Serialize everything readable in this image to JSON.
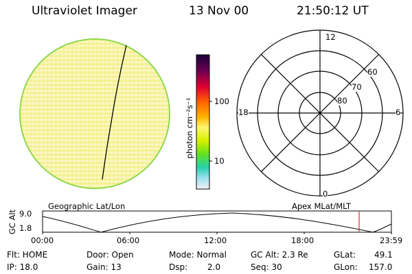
{
  "header": {
    "instrument": "Ultraviolet Imager",
    "date": "13 Nov 00",
    "time": "21:50:12 UT"
  },
  "colorbar": {
    "unit_label": "photon cm⁻²s⁻¹",
    "ticks": [
      "100",
      "10"
    ]
  },
  "polar_plot": {
    "mlt_labels": {
      "top": "12",
      "left": "18",
      "right": "6",
      "bottom": "0"
    },
    "mlat_labels": [
      "60",
      "70",
      "80"
    ]
  },
  "panel_labels": {
    "geographic": "Geographic Lat/Lon",
    "apex": "Apex MLat/MLT"
  },
  "altitude_strip": {
    "axis_title": "GC Alt",
    "y_ticks": [
      "9.0",
      "1.8"
    ],
    "x_ticks": [
      "00:00",
      "06:00",
      "12:00",
      "18:00",
      "23:59"
    ]
  },
  "status": {
    "flt": "Flt: HOME",
    "ip": "IP: 18.0",
    "door": "Door: Open",
    "gain": "Gain: 13",
    "mode": "Mode: Normal",
    "dsp": "Dsp:",
    "dsp_value": "2.0",
    "gc_alt": "GC Alt: 2.3 Re",
    "seq": "Seq: 30",
    "glat": "GLat:",
    "glat_value": "49.1",
    "glon": "GLon:",
    "glon_value": "157.0"
  },
  "colors": {
    "disk_fill": "#f5f09a",
    "disk_edge": "#8fd84a",
    "marker": "#cc0000"
  }
}
